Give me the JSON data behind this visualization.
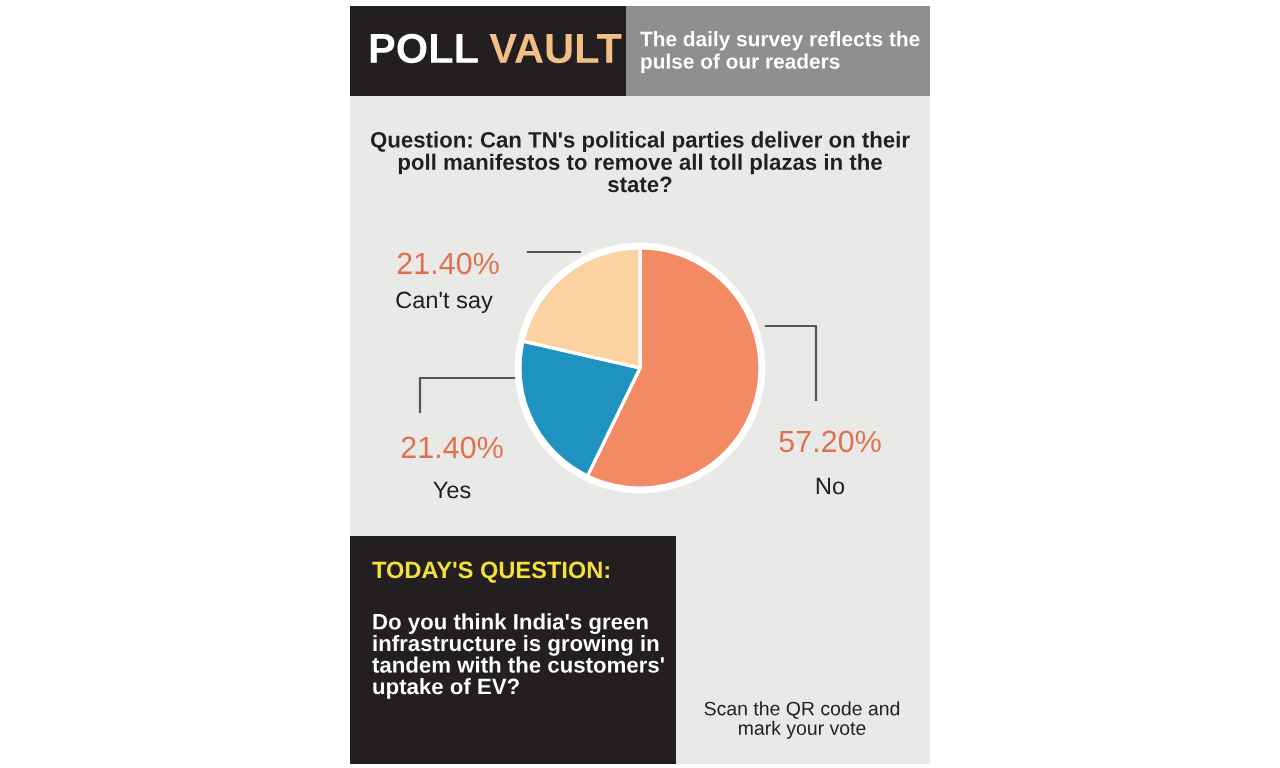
{
  "chart_data": {
    "type": "pie",
    "title": "POLL VAULT",
    "subtitle": "The daily survey reflects the pulse of our readers",
    "categories": [
      "No",
      "Yes",
      "Can't say"
    ],
    "values": [
      57.2,
      21.4,
      21.4
    ],
    "value_labels": [
      "57.20%",
      "21.40%",
      "21.40%"
    ],
    "colors": [
      "#f28a64",
      "#1f93bf",
      "#fbd3a0"
    ],
    "legend": false,
    "annotations": [
      "Question: Can TN's political parties deliver on their poll manifestos to remove all toll plazas in the state?",
      "TODAY'S QUESTION:",
      "Do you think India's green infrastructure is growing in tandem with the customers' uptake of EV?",
      "Scan the QR code and mark your vote"
    ]
  }
}
